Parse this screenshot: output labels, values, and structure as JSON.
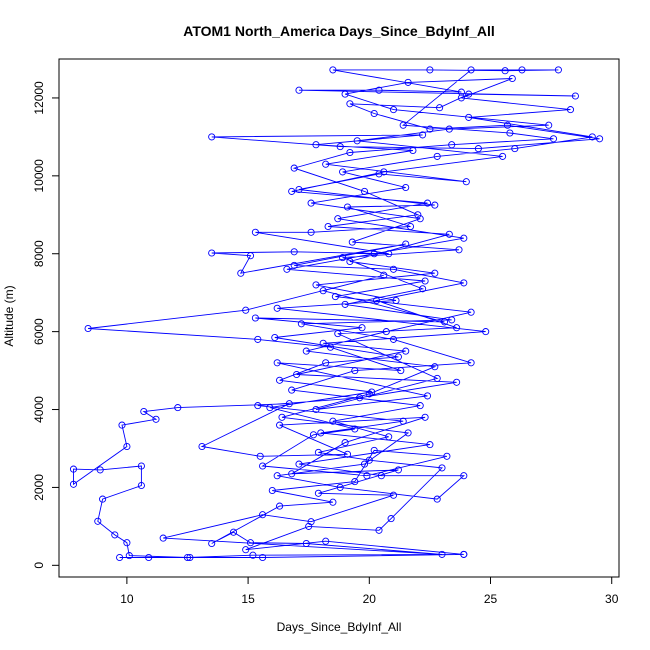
{
  "chart_data": {
    "type": "line",
    "title": "ATOM1 North_America Days_Since_BdyInf_All",
    "xlabel": "Days_Since_BdyInf_All",
    "ylabel": "Altitude (m)",
    "xlim": [
      7.2,
      30.3
    ],
    "ylim": [
      -300,
      13000
    ],
    "xticks": [
      10,
      15,
      20,
      25,
      30
    ],
    "yticks": [
      0,
      2000,
      4000,
      6000,
      8000,
      10000,
      12000
    ],
    "grid": false,
    "legend": "none",
    "series": [
      {
        "color": "#0000ff",
        "marker": "open-circle",
        "points": [
          [
            9.7,
            200
          ],
          [
            10.9,
            200
          ],
          [
            12.6,
            200
          ],
          [
            15.6,
            200
          ],
          [
            23.9,
            280
          ],
          [
            15.2,
            260
          ],
          [
            12.5,
            200
          ],
          [
            10.1,
            250
          ],
          [
            10.0,
            580
          ],
          [
            9.5,
            780
          ],
          [
            8.8,
            1130
          ],
          [
            9.0,
            1700
          ],
          [
            10.6,
            2050
          ],
          [
            10.6,
            2550
          ],
          [
            8.9,
            2450
          ],
          [
            7.8,
            2470
          ],
          [
            7.8,
            2080
          ],
          [
            10.0,
            3050
          ],
          [
            9.8,
            3600
          ],
          [
            11.2,
            3750
          ],
          [
            10.7,
            3950
          ],
          [
            12.1,
            4050
          ],
          [
            16.7,
            4150
          ],
          [
            13.1,
            3050
          ],
          [
            15.5,
            2800
          ],
          [
            19.1,
            2850
          ],
          [
            16.3,
            3600
          ],
          [
            22.3,
            3800
          ],
          [
            19.0,
            3150
          ],
          [
            16.8,
            2350
          ],
          [
            21.2,
            2450
          ],
          [
            17.9,
            1850
          ],
          [
            21.0,
            1800
          ],
          [
            17.6,
            1120
          ],
          [
            15.6,
            1300
          ],
          [
            11.5,
            700
          ],
          [
            23.0,
            280
          ],
          [
            17.4,
            560
          ],
          [
            15.1,
            580
          ],
          [
            14.4,
            850
          ],
          [
            13.5,
            560
          ],
          [
            16.3,
            1520
          ],
          [
            18.5,
            1620
          ],
          [
            16.0,
            1920
          ],
          [
            19.4,
            2150
          ],
          [
            20.2,
            2950
          ],
          [
            23.2,
            2800
          ],
          [
            19.9,
            2300
          ],
          [
            15.6,
            2550
          ],
          [
            17.7,
            3350
          ],
          [
            19.4,
            3500
          ],
          [
            15.9,
            4050
          ],
          [
            20.1,
            4450
          ],
          [
            16.3,
            4750
          ],
          [
            18.2,
            5200
          ],
          [
            21.2,
            5350
          ],
          [
            16.1,
            5850
          ],
          [
            19.7,
            6100
          ],
          [
            15.3,
            6350
          ],
          [
            23.1,
            6250
          ],
          [
            18.1,
            7050
          ],
          [
            20.6,
            7450
          ],
          [
            14.9,
            6550
          ],
          [
            8.4,
            6080
          ],
          [
            15.4,
            5800
          ],
          [
            18.4,
            5600
          ],
          [
            21.3,
            5000
          ],
          [
            16.2,
            5200
          ],
          [
            22.4,
            4350
          ],
          [
            17.8,
            4000
          ],
          [
            22.8,
            4800
          ],
          [
            18.7,
            5950
          ],
          [
            23.6,
            6100
          ],
          [
            20.3,
            6800
          ],
          [
            23.9,
            7250
          ],
          [
            21.0,
            7600
          ],
          [
            16.9,
            7700
          ],
          [
            21.5,
            8250
          ],
          [
            14.7,
            7500
          ],
          [
            15.1,
            7950
          ],
          [
            13.5,
            8020
          ],
          [
            16.9,
            8050
          ],
          [
            20.8,
            8000
          ],
          [
            15.3,
            8550
          ],
          [
            17.6,
            8550
          ],
          [
            21.7,
            8700
          ],
          [
            19.1,
            9200
          ],
          [
            22.7,
            9250
          ],
          [
            17.1,
            9650
          ],
          [
            20.4,
            10050
          ],
          [
            24.0,
            9850
          ],
          [
            18.2,
            10300
          ],
          [
            21.8,
            10650
          ],
          [
            17.8,
            10800
          ],
          [
            22.2,
            11050
          ],
          [
            13.5,
            11000
          ],
          [
            18.8,
            10750
          ],
          [
            24.5,
            10700
          ],
          [
            29.5,
            10950
          ],
          [
            25.7,
            11300
          ],
          [
            22.5,
            11200
          ],
          [
            20.2,
            11600
          ],
          [
            19.2,
            11850
          ],
          [
            22.9,
            11750
          ],
          [
            24.1,
            12100
          ],
          [
            28.5,
            12050
          ],
          [
            17.1,
            12200
          ],
          [
            20.4,
            12200
          ],
          [
            23.8,
            12150
          ],
          [
            18.5,
            12720
          ],
          [
            22.5,
            12720
          ],
          [
            25.6,
            12700
          ],
          [
            27.8,
            12720
          ],
          [
            26.3,
            12720
          ],
          [
            24.2,
            12720
          ],
          [
            21.4,
            11300
          ],
          [
            25.8,
            11100
          ],
          [
            27.6,
            10950
          ],
          [
            23.4,
            10800
          ],
          [
            19.2,
            10600
          ],
          [
            16.9,
            10200
          ],
          [
            19.8,
            9600
          ],
          [
            22.0,
            9000
          ],
          [
            18.3,
            8700
          ],
          [
            23.3,
            8500
          ],
          [
            19.2,
            7800
          ],
          [
            22.7,
            7500
          ],
          [
            17.8,
            7200
          ],
          [
            21.1,
            6800
          ],
          [
            16.2,
            6600
          ],
          [
            24.8,
            6000
          ],
          [
            18.1,
            5700
          ],
          [
            21.5,
            5500
          ],
          [
            17.0,
            4900
          ],
          [
            23.6,
            4700
          ],
          [
            19.6,
            4300
          ],
          [
            15.4,
            4100
          ],
          [
            21.4,
            3700
          ],
          [
            18.0,
            3400
          ],
          [
            22.5,
            3100
          ],
          [
            17.1,
            2600
          ],
          [
            20.5,
            2300
          ],
          [
            23.9,
            2300
          ],
          [
            22.8,
            1700
          ],
          [
            18.8,
            2000
          ],
          [
            16.2,
            2300
          ],
          [
            19.8,
            2600
          ],
          [
            21.6,
            3400
          ],
          [
            16.4,
            3800
          ],
          [
            20.0,
            4400
          ],
          [
            22.7,
            5100
          ],
          [
            17.4,
            5500
          ],
          [
            20.7,
            6000
          ],
          [
            24.2,
            6500
          ],
          [
            18.6,
            6900
          ],
          [
            22.3,
            7300
          ],
          [
            16.6,
            7600
          ],
          [
            20.2,
            8000
          ],
          [
            23.9,
            8400
          ],
          [
            18.7,
            8900
          ],
          [
            22.4,
            9300
          ],
          [
            16.8,
            9600
          ],
          [
            20.6,
            10100
          ],
          [
            25.5,
            10500
          ],
          [
            19.5,
            10900
          ],
          [
            23.3,
            11200
          ],
          [
            27.4,
            11300
          ],
          [
            21.0,
            11700
          ],
          [
            19.0,
            12100
          ],
          [
            21.6,
            12400
          ],
          [
            25.9,
            12500
          ],
          [
            23.8,
            12000
          ],
          [
            28.3,
            11700
          ],
          [
            24.1,
            11500
          ],
          [
            29.2,
            11000
          ],
          [
            26.0,
            10700
          ],
          [
            22.8,
            10500
          ],
          [
            18.9,
            10100
          ],
          [
            21.5,
            9700
          ],
          [
            17.6,
            9300
          ],
          [
            22.1,
            8900
          ],
          [
            19.3,
            8300
          ],
          [
            23.7,
            8100
          ],
          [
            18.9,
            7900
          ],
          [
            22.2,
            7100
          ],
          [
            19.0,
            6700
          ],
          [
            23.4,
            6300
          ],
          [
            17.2,
            6200
          ],
          [
            21.0,
            5800
          ],
          [
            24.2,
            5200
          ],
          [
            19.4,
            5000
          ],
          [
            16.8,
            4500
          ],
          [
            22.1,
            4100
          ],
          [
            18.5,
            3700
          ],
          [
            20.8,
            3300
          ],
          [
            17.9,
            2900
          ],
          [
            20.0,
            2700
          ],
          [
            23.0,
            2500
          ],
          [
            20.9,
            1200
          ],
          [
            20.4,
            900
          ],
          [
            17.5,
            1000
          ],
          [
            14.9,
            400
          ],
          [
            18.2,
            620
          ],
          [
            23.9,
            280
          ]
        ]
      }
    ]
  }
}
